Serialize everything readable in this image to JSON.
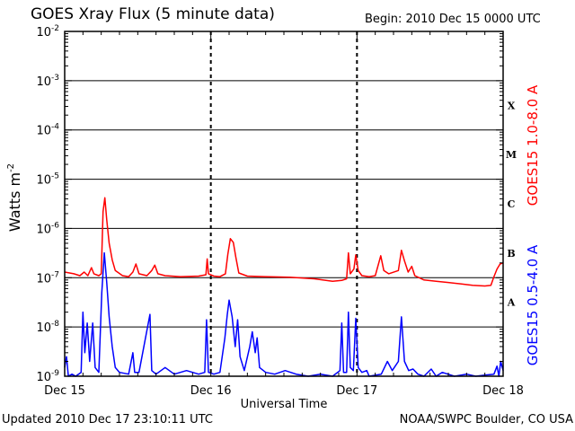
{
  "header": {
    "title": "GOES Xray Flux (5 minute data)",
    "begin": "Begin:  2010 Dec 15 0000 UTC"
  },
  "footer": {
    "updated": "Updated 2010 Dec 17 23:10:11 UTC",
    "source": "NOAA/SWPC Boulder, CO USA"
  },
  "chart_data": {
    "type": "line",
    "title": "GOES Xray Flux (5 minute data)",
    "xlabel": "Universal Time",
    "ylabel": "Watts m⁻²",
    "ylabel_base": "Watts m",
    "ylabel_exp": "-2",
    "yscale": "log",
    "ylim": [
      1e-09,
      0.01
    ],
    "xlim": [
      0,
      72
    ],
    "x_unit": "hours since 2010 Dec 15 0000 UTC",
    "x_ticks": [
      {
        "x": 0,
        "label": "Dec 15"
      },
      {
        "x": 24,
        "label": "Dec 16"
      },
      {
        "x": 48,
        "label": "Dec 17"
      },
      {
        "x": 72,
        "label": "Dec 18"
      }
    ],
    "y_ticks": [
      {
        "value": 1e-09,
        "base": "10",
        "exp": "-9"
      },
      {
        "value": 1e-08,
        "base": "10",
        "exp": "-8"
      },
      {
        "value": 1e-07,
        "base": "10",
        "exp": "-7"
      },
      {
        "value": 1e-06,
        "base": "10",
        "exp": "-6"
      },
      {
        "value": 1e-05,
        "base": "10",
        "exp": "-5"
      },
      {
        "value": 0.0001,
        "base": "10",
        "exp": "-4"
      },
      {
        "value": 0.001,
        "base": "10",
        "exp": "-3"
      },
      {
        "value": 0.01,
        "base": "10",
        "exp": "-2"
      }
    ],
    "flare_classes": [
      {
        "label": "A",
        "ymin": 1e-08,
        "ymax": 1e-07
      },
      {
        "label": "B",
        "ymin": 1e-07,
        "ymax": 1e-06
      },
      {
        "label": "C",
        "ymin": 1e-06,
        "ymax": 1e-05
      },
      {
        "label": "M",
        "ymin": 1e-05,
        "ymax": 0.0001
      },
      {
        "label": "X",
        "ymin": 0.0001,
        "ymax": 0.001
      }
    ],
    "grid": {
      "horizontal_at_decades": true,
      "vertical_dashed_at_days": true
    },
    "series": [
      {
        "name": "GOES15 1.0-8.0 A",
        "color": "#ff0000",
        "points": [
          [
            0,
            1.3e-07
          ],
          [
            1.5,
            1.2e-07
          ],
          [
            2.5,
            1.1e-07
          ],
          [
            3.2,
            1.3e-07
          ],
          [
            3.8,
            1.1e-07
          ],
          [
            4.4,
            1.6e-07
          ],
          [
            4.8,
            1.2e-07
          ],
          [
            5.6,
            1.1e-07
          ],
          [
            6.0,
            1.2e-07
          ],
          [
            6.3,
            2.2e-06
          ],
          [
            6.6,
            4.2e-06
          ],
          [
            6.9,
            1.5e-06
          ],
          [
            7.3,
            5e-07
          ],
          [
            7.8,
            2.3e-07
          ],
          [
            8.3,
            1.4e-07
          ],
          [
            9.5,
            1.1e-07
          ],
          [
            10.5,
            1.05e-07
          ],
          [
            11.2,
            1.3e-07
          ],
          [
            11.7,
            1.9e-07
          ],
          [
            12.2,
            1.2e-07
          ],
          [
            13.5,
            1.1e-07
          ],
          [
            14.3,
            1.4e-07
          ],
          [
            14.8,
            1.8e-07
          ],
          [
            15.3,
            1.2e-07
          ],
          [
            16.5,
            1.1e-07
          ],
          [
            19,
            1.05e-07
          ],
          [
            22,
            1.08e-07
          ],
          [
            23.2,
            1.15e-07
          ],
          [
            23.4,
            2.4e-07
          ],
          [
            23.6,
            1.2e-07
          ],
          [
            24.5,
            1.08e-07
          ],
          [
            25.5,
            1.05e-07
          ],
          [
            26.4,
            1.2e-07
          ],
          [
            26.8,
            3e-07
          ],
          [
            27.2,
            6.2e-07
          ],
          [
            27.7,
            5.2e-07
          ],
          [
            28.1,
            2.6e-07
          ],
          [
            28.6,
            1.25e-07
          ],
          [
            30,
            1.08e-07
          ],
          [
            33,
            1.05e-07
          ],
          [
            37,
            1.02e-07
          ],
          [
            41,
            9.5e-08
          ],
          [
            44,
            8.5e-08
          ],
          [
            45.5,
            8.8e-08
          ],
          [
            46.3,
            9.5e-08
          ],
          [
            46.6,
            3.2e-07
          ],
          [
            46.9,
            1.2e-07
          ],
          [
            47.5,
            1.5e-07
          ],
          [
            47.8,
            2.9e-07
          ],
          [
            48.2,
            1.4e-07
          ],
          [
            48.8,
            1.1e-07
          ],
          [
            50,
            1.05e-07
          ],
          [
            51,
            1.1e-07
          ],
          [
            51.9,
            2.8e-07
          ],
          [
            52.4,
            1.4e-07
          ],
          [
            53.2,
            1.2e-07
          ],
          [
            54.8,
            1.4e-07
          ],
          [
            55.3,
            3.6e-07
          ],
          [
            55.8,
            2.2e-07
          ],
          [
            56.4,
            1.3e-07
          ],
          [
            57,
            1.7e-07
          ],
          [
            57.5,
            1.1e-07
          ],
          [
            59,
            9e-08
          ],
          [
            61,
            8.5e-08
          ],
          [
            63,
            8e-08
          ],
          [
            65,
            7.5e-08
          ],
          [
            67,
            7e-08
          ],
          [
            69,
            6.8e-08
          ],
          [
            70,
            7e-08
          ],
          [
            70.5,
            1.05e-07
          ],
          [
            71,
            1.5e-07
          ],
          [
            71.5,
            1.9e-07
          ],
          [
            72,
            2e-07
          ]
        ]
      },
      {
        "name": "GOES15 0.5-4.0 A",
        "color": "#0000ff",
        "points": [
          [
            0,
            1.5e-09
          ],
          [
            0.3,
            2.5e-09
          ],
          [
            0.6,
            1e-09
          ],
          [
            1.2,
            1.1e-09
          ],
          [
            1.8,
            1e-09
          ],
          [
            2.7,
            1.2e-09
          ],
          [
            3.0,
            2e-08
          ],
          [
            3.3,
            3e-09
          ],
          [
            3.7,
            1.2e-08
          ],
          [
            4.1,
            2e-09
          ],
          [
            4.6,
            1.2e-08
          ],
          [
            5.0,
            1.5e-09
          ],
          [
            5.6,
            1.2e-09
          ],
          [
            6.1,
            5e-08
          ],
          [
            6.5,
            3.2e-07
          ],
          [
            6.9,
            8e-08
          ],
          [
            7.3,
            1.6e-08
          ],
          [
            7.8,
            4e-09
          ],
          [
            8.3,
            1.5e-09
          ],
          [
            9,
            1.2e-09
          ],
          [
            10.5,
            1.1e-09
          ],
          [
            11.2,
            3e-09
          ],
          [
            11.5,
            1.2e-09
          ],
          [
            12.2,
            1.2e-09
          ],
          [
            14.0,
            1.8e-08
          ],
          [
            14.3,
            1.3e-09
          ],
          [
            15,
            1.1e-09
          ],
          [
            16.5,
            1.5e-09
          ],
          [
            18,
            1.1e-09
          ],
          [
            20,
            1.3e-09
          ],
          [
            22,
            1.1e-09
          ],
          [
            23.0,
            1.2e-09
          ],
          [
            23.3,
            1.4e-08
          ],
          [
            23.6,
            1.2e-09
          ],
          [
            24.5,
            1.1e-09
          ],
          [
            25.5,
            1.2e-09
          ],
          [
            26.3,
            6e-09
          ],
          [
            26.7,
            1.8e-08
          ],
          [
            27.0,
            3.5e-08
          ],
          [
            27.5,
            1.6e-08
          ],
          [
            28.0,
            4e-09
          ],
          [
            28.4,
            1.4e-08
          ],
          [
            28.8,
            2.5e-09
          ],
          [
            29.5,
            1.3e-09
          ],
          [
            30.4,
            4e-09
          ],
          [
            30.8,
            8e-09
          ],
          [
            31.3,
            3e-09
          ],
          [
            31.6,
            6e-09
          ],
          [
            32.0,
            1.5e-09
          ],
          [
            33,
            1.2e-09
          ],
          [
            34.5,
            1.1e-09
          ],
          [
            36.2,
            1.3e-09
          ],
          [
            38,
            1.1e-09
          ],
          [
            40,
            1e-09
          ],
          [
            42,
            1.1e-09
          ],
          [
            44,
            1e-09
          ],
          [
            45.2,
            1.3e-09
          ],
          [
            45.5,
            1.2e-08
          ],
          [
            45.8,
            1.2e-09
          ],
          [
            46.3,
            1.2e-09
          ],
          [
            46.6,
            2e-08
          ],
          [
            46.9,
            1.5e-09
          ],
          [
            47.4,
            1.3e-09
          ],
          [
            47.8,
            1.5e-08
          ],
          [
            48.2,
            1.5e-09
          ],
          [
            48.8,
            1.2e-09
          ],
          [
            49.6,
            1.3e-09
          ],
          [
            50,
            1e-09
          ],
          [
            52,
            1.1e-09
          ],
          [
            53.0,
            2e-09
          ],
          [
            53.8,
            1.3e-09
          ],
          [
            54.8,
            2e-09
          ],
          [
            55.3,
            1.6e-08
          ],
          [
            55.8,
            2e-09
          ],
          [
            56.5,
            1.3e-09
          ],
          [
            57.2,
            1.4e-09
          ],
          [
            58,
            1.1e-09
          ],
          [
            59,
            1e-09
          ],
          [
            60.2,
            1.4e-09
          ],
          [
            61,
            1e-09
          ],
          [
            62,
            1.2e-09
          ],
          [
            64,
            1e-09
          ],
          [
            66,
            1.1e-09
          ],
          [
            67.5,
            1e-09
          ],
          [
            69,
            1.05e-09
          ],
          [
            70.5,
            1.1e-09
          ],
          [
            71.0,
            1.6e-09
          ],
          [
            71.3,
            1e-09
          ],
          [
            71.6,
            2e-09
          ],
          [
            72,
            1.3e-09
          ]
        ]
      }
    ]
  }
}
